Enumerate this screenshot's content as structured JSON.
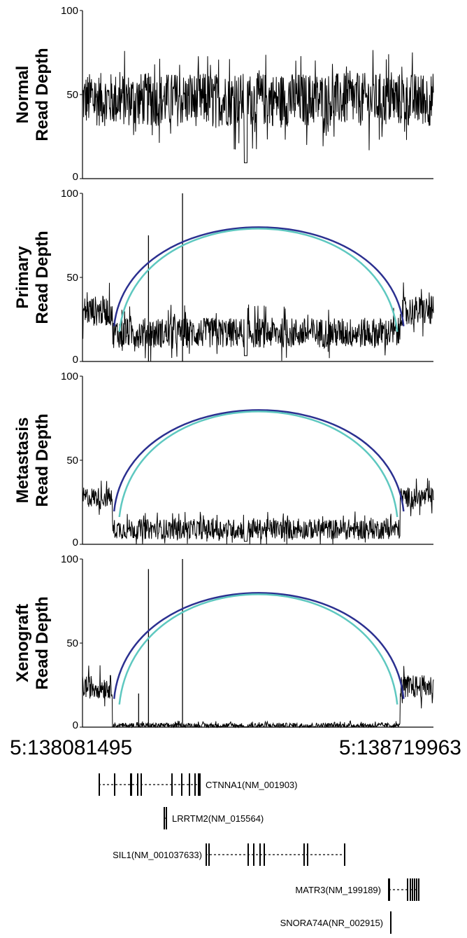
{
  "chart_data": {
    "type": "line",
    "description_free": true,
    "x_range": {
      "start_label": "5:138081495",
      "end_label": "5:138719963"
    },
    "panels": [
      {
        "id": "normal",
        "label_line1": "Normal",
        "label_line2": "Read Depth",
        "ylim": [
          0,
          100
        ],
        "yticks": [
          "0",
          "50",
          "100"
        ],
        "baseline_depth": 47,
        "noise": 16,
        "has_arcs": false,
        "spikes": [],
        "dip_fraction": 0.465
      },
      {
        "id": "primary",
        "label_line1": "Primary",
        "label_line2": "Read Depth",
        "ylim": [
          0,
          100
        ],
        "yticks": [
          "0",
          "50",
          "100"
        ],
        "flank_depth": 30,
        "inner_depth": 17,
        "noise": 9,
        "has_arcs": true,
        "spikes": [
          {
            "x_fraction": 0.188,
            "value": 75
          },
          {
            "x_fraction": 0.285,
            "value": 100
          }
        ],
        "dip_fraction": 0.465
      },
      {
        "id": "metastasis",
        "label_line1": "Metastasis",
        "label_line2": "Read Depth",
        "ylim": [
          0,
          100
        ],
        "yticks": [
          "0",
          "50",
          "100"
        ],
        "flank_depth": 28,
        "inner_depth": 9,
        "noise": 6,
        "has_arcs": true,
        "spikes": [],
        "dip_fraction": 0.465
      },
      {
        "id": "xenograft",
        "label_line1": "Xenograft",
        "label_line2": "Read Depth",
        "ylim": [
          0,
          100
        ],
        "yticks": [
          "0",
          "50",
          "100"
        ],
        "flank_depth": 24,
        "inner_depth": 1,
        "noise": 7,
        "has_arcs": true,
        "spikes": [
          {
            "x_fraction": 0.16,
            "value": 20
          },
          {
            "x_fraction": 0.188,
            "value": 94
          },
          {
            "x_fraction": 0.285,
            "value": 100
          }
        ],
        "dip_fraction": 0.465
      }
    ],
    "arc": {
      "peak_value": 80,
      "color_outer": "#2b3090",
      "color_inner": "#5ec8c0"
    },
    "genes": [
      {
        "label": "CTNNA1(NM_001903)",
        "label_side": "right"
      },
      {
        "label": "LRRTM2(NM_015564)",
        "label_side": "right"
      },
      {
        "label": "SIL1(NM_001037633)",
        "label_side": "left"
      },
      {
        "label": "MATR3(NM_199189)",
        "label_side": "left"
      },
      {
        "label": "SNORA74A(NR_002915)",
        "label_side": "left"
      }
    ]
  }
}
